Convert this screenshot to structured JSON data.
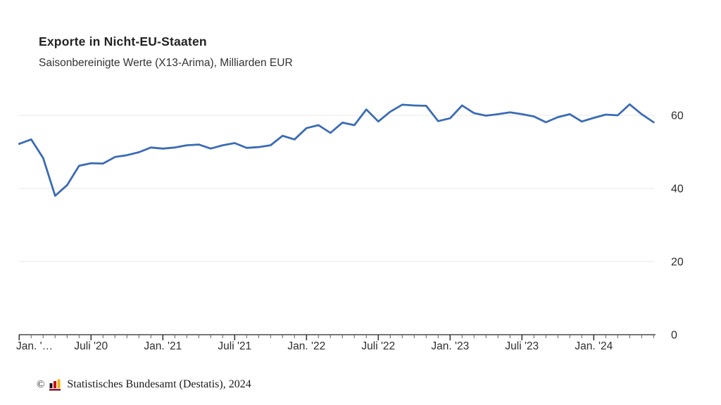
{
  "header": {
    "title": "Exporte in Nicht-EU-Staaten",
    "subtitle": "Saisonbereinigte Werte (X13-Arima), Milliarden EUR"
  },
  "chart_data": {
    "type": "line",
    "title": "Exporte in Nicht-EU-Staaten",
    "subtitle": "Saisonbereinigte Werte (X13-Arima), Milliarden EUR",
    "unit": "Milliarden EUR",
    "frequency": "monatlich",
    "x_start": "Jan. 2020",
    "x_end": "Juni 2024",
    "values": [
      52.2,
      53.4,
      48.3,
      38.0,
      40.9,
      46.2,
      46.9,
      46.8,
      48.6,
      49.1,
      49.9,
      51.2,
      50.9,
      51.2,
      51.8,
      52.0,
      50.9,
      51.8,
      52.4,
      51.1,
      51.3,
      51.8,
      54.4,
      53.4,
      56.5,
      57.3,
      55.2,
      58.0,
      57.3,
      61.6,
      58.3,
      61.0,
      62.9,
      62.7,
      62.6,
      58.4,
      59.2,
      62.7,
      60.6,
      59.9,
      60.3,
      60.8,
      60.3,
      59.7,
      58.1,
      59.5,
      60.3,
      58.3,
      59.3,
      60.2,
      60.0,
      63.0,
      60.3,
      58.1
    ],
    "x_major_ticks": [
      {
        "index": 0,
        "label": "Jan. '…"
      },
      {
        "index": 6,
        "label": "Juli '20"
      },
      {
        "index": 12,
        "label": "Jan. '21"
      },
      {
        "index": 18,
        "label": "Juli '21"
      },
      {
        "index": 24,
        "label": "Jan. '22"
      },
      {
        "index": 30,
        "label": "Juli '22"
      },
      {
        "index": 36,
        "label": "Jan. '23"
      },
      {
        "index": 42,
        "label": "Juli '23"
      },
      {
        "index": 48,
        "label": "Jan. '24"
      }
    ],
    "y_ticks": [
      0,
      20,
      40,
      60
    ],
    "ylim": [
      0,
      65
    ],
    "grid": true,
    "legend_position": "none",
    "line_color": "#3a6cb5",
    "grid_color": "#e8e8e8",
    "axis_color": "#4a4a4a",
    "label_color": "#2e2e2e"
  },
  "footer": {
    "copyright": "©",
    "source": "Statistisches Bundesamt (Destatis), 2024",
    "logo_colors": {
      "bar1": "#161616",
      "bar2": "#d1001f",
      "bar3": "#f5b300",
      "base": "#8e1b28"
    }
  }
}
